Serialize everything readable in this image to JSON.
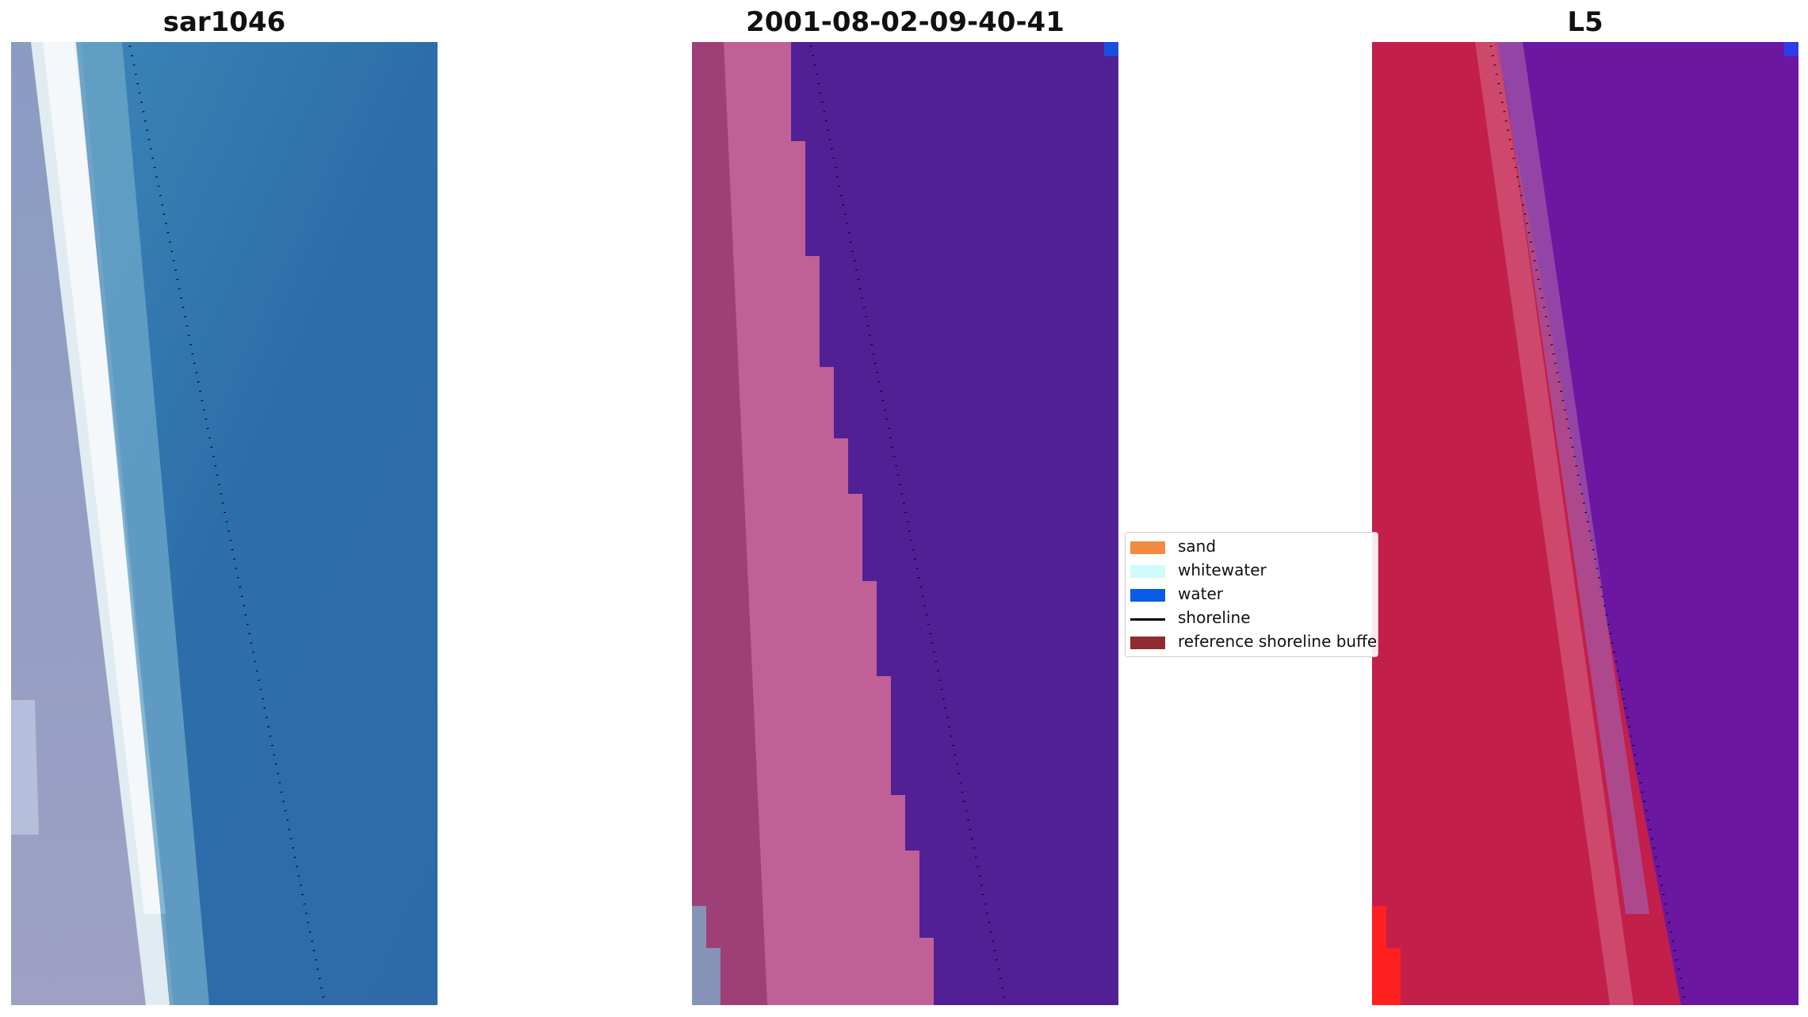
{
  "panels": [
    {
      "title": "sar1046",
      "kind": "rgb"
    },
    {
      "title": "2001-08-02-09-40-41",
      "kind": "classified"
    },
    {
      "title": "L5",
      "kind": "index"
    }
  ],
  "legend": {
    "items": [
      {
        "label": "sand",
        "color": "#f4893f",
        "type": "patch"
      },
      {
        "label": "whitewater",
        "color": "#cffbfb",
        "type": "patch"
      },
      {
        "label": "water",
        "color": "#0a5be8",
        "type": "patch"
      },
      {
        "label": "shoreline",
        "color": "#000000",
        "type": "line"
      },
      {
        "label": "reference shoreline buffer",
        "color": "#8e2a30",
        "type": "patch"
      }
    ]
  }
}
